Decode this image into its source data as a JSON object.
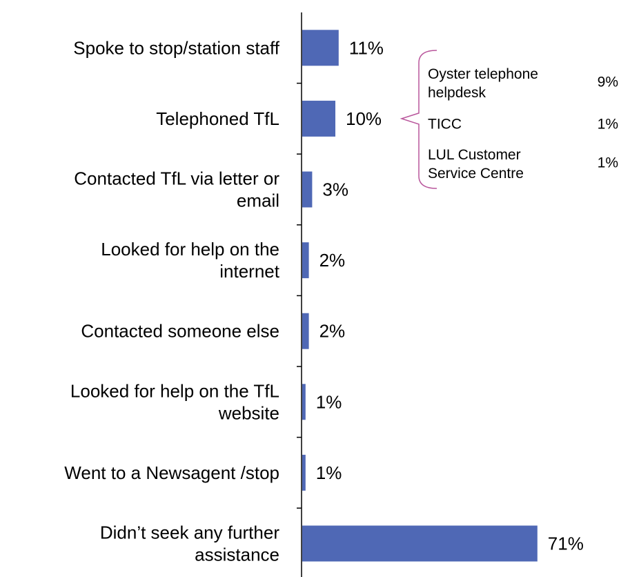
{
  "chart_data": {
    "type": "bar",
    "orientation": "horizontal",
    "categories": [
      "Spoke to stop/station staff",
      "Telephoned TfL",
      "Contacted TfL via letter or email",
      "Looked for help on the internet",
      "Contacted someone else",
      "Looked for help on the TfL website",
      "Went to a Newsagent /stop",
      "Didn’t seek any further assistance"
    ],
    "category_lines": [
      [
        "Spoke to stop/station staff"
      ],
      [
        "Telephoned TfL"
      ],
      [
        "Contacted TfL via letter or",
        "email"
      ],
      [
        "Looked for help on the",
        "internet"
      ],
      [
        "Contacted someone else"
      ],
      [
        "Looked for help on the TfL",
        "website"
      ],
      [
        "Went to a Newsagent /stop"
      ],
      [
        "Didn’t seek any further",
        "assistance"
      ]
    ],
    "values": [
      11,
      10,
      3,
      2,
      2,
      1,
      1,
      71
    ],
    "value_labels": [
      "11%",
      "10%",
      "3%",
      "2%",
      "2%",
      "1%",
      "1%",
      "71%"
    ],
    "xlim": [
      0,
      100
    ],
    "grid": false,
    "bar_color": "#4f68b5",
    "callout": {
      "parent_category": "Telephoned TfL",
      "bracket_color": "#b9569c",
      "items": [
        {
          "label_lines": [
            "Oyster telephone",
            "helpdesk"
          ],
          "value": 9,
          "value_label": "9%"
        },
        {
          "label_lines": [
            "TICC"
          ],
          "value": 1,
          "value_label": "1%"
        },
        {
          "label_lines": [
            "LUL Customer",
            "Service Centre"
          ],
          "value": 1,
          "value_label": "1%"
        }
      ]
    }
  }
}
